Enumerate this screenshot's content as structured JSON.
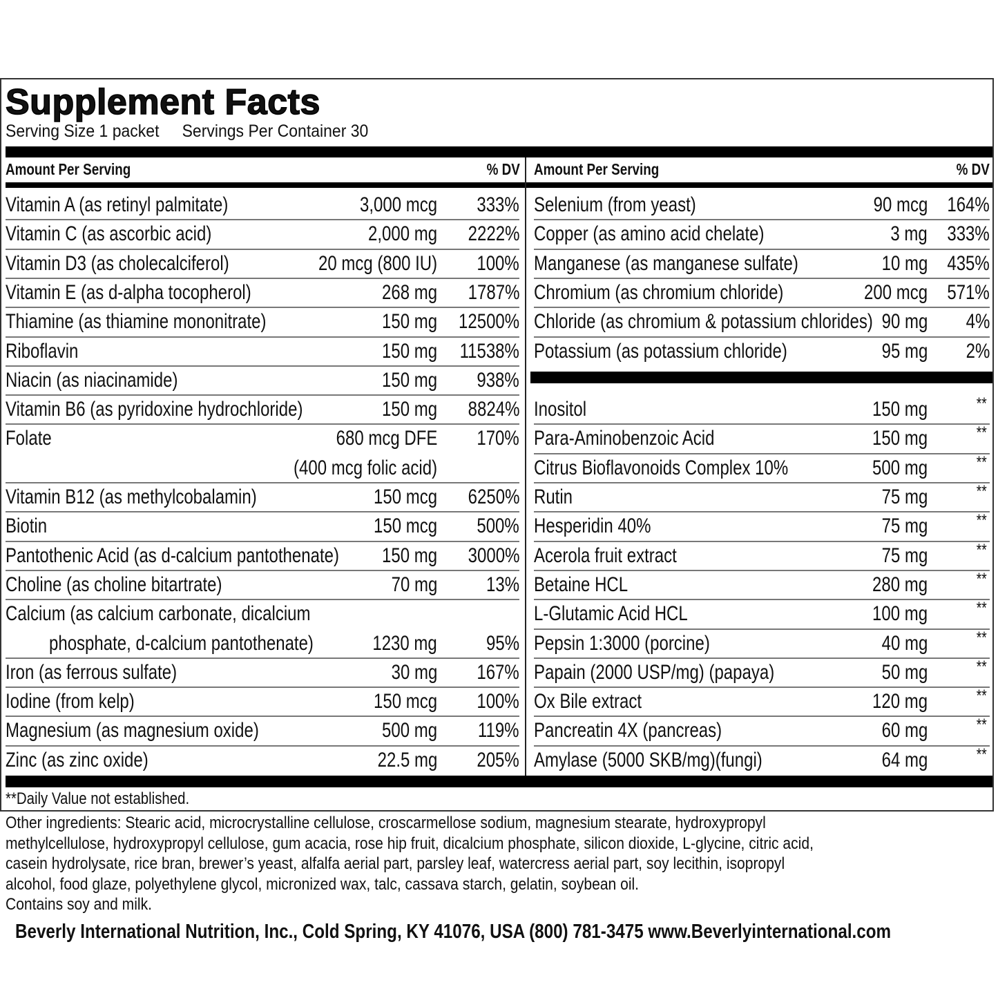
{
  "title": "Supplement Facts",
  "serving_size": "Serving Size 1 packet",
  "servings_per_container": "Servings Per Container 30",
  "header": {
    "amount_label": "Amount Per Serving",
    "dv_label": "% DV"
  },
  "left_items": [
    {
      "name": "Vitamin A (as retinyl palmitate)",
      "amount": "3,000 mcg",
      "dv": "333%"
    },
    {
      "name": "Vitamin C (as ascorbic acid)",
      "amount": "2,000 mg",
      "dv": "2222%"
    },
    {
      "name": "Vitamin D3 (as cholecalciferol)",
      "amount": "20 mcg (800 IU)",
      "dv": "100%"
    },
    {
      "name": "Vitamin E (as d-alpha tocopherol)",
      "amount": "268 mg",
      "dv": "1787%"
    },
    {
      "name": "Thiamine (as thiamine mononitrate)",
      "amount": "150 mg",
      "dv": "12500%"
    },
    {
      "name": "Riboflavin",
      "amount": "150 mg",
      "dv": "11538%"
    },
    {
      "name": "Niacin (as niacinamide)",
      "amount": "150 mg",
      "dv": "938%"
    },
    {
      "name": "Vitamin B6 (as pyridoxine hydrochloride)",
      "amount": "150 mg",
      "dv": "8824%"
    },
    {
      "name": "Folate",
      "amount": "680 mcg DFE",
      "dv": "170%",
      "amount_line2": "(400 mcg folic acid)"
    },
    {
      "name": "Vitamin B12 (as methylcobalamin)",
      "amount": "150 mcg",
      "dv": "6250%"
    },
    {
      "name": "Biotin",
      "amount": "150 mcg",
      "dv": "500%"
    },
    {
      "name": "Pantothenic Acid (as d-calcium pantothenate)",
      "amount": "150 mg",
      "dv": "3000%"
    },
    {
      "name": "Choline (as choline bitartrate)",
      "amount": "70 mg",
      "dv": "13%"
    },
    {
      "name": "Calcium (as calcium carbonate, dicalcium",
      "name_line2": "phosphate, d-calcium pantothenate)",
      "amount": "1230 mg",
      "dv": "95%"
    },
    {
      "name": "Iron (as ferrous sulfate)",
      "amount": "30 mg",
      "dv": "167%"
    },
    {
      "name": "Iodine (from kelp)",
      "amount": "150 mcg",
      "dv": "100%"
    },
    {
      "name": "Magnesium (as magnesium oxide)",
      "amount": "500 mg",
      "dv": "119%"
    },
    {
      "name": "Zinc (as zinc oxide)",
      "amount": "22.5 mg",
      "dv": "205%"
    }
  ],
  "right_items_top": [
    {
      "name": "Selenium (from yeast)",
      "amount": "90 mcg",
      "dv": "164%"
    },
    {
      "name": "Copper (as amino acid chelate)",
      "amount": "3 mg",
      "dv": "333%"
    },
    {
      "name": "Manganese (as manganese sulfate)",
      "amount": "10 mg",
      "dv": "435%"
    },
    {
      "name": "Chromium (as chromium chloride)",
      "amount": "200 mcg",
      "dv": "571%"
    },
    {
      "name": "Chloride (as chromium & potassium chlorides)",
      "amount": "90 mg",
      "dv": "4%"
    },
    {
      "name": "Potassium (as potassium chloride)",
      "amount": "95 mg",
      "dv": "2%"
    }
  ],
  "right_items_bottom": [
    {
      "name": "Inositol",
      "amount": "150 mg",
      "dv": "**"
    },
    {
      "name": "Para-Aminobenzoic Acid",
      "amount": "150 mg",
      "dv": "**"
    },
    {
      "name": "Citrus Bioflavonoids Complex 10%",
      "amount": "500 mg",
      "dv": "**"
    },
    {
      "name": "Rutin",
      "amount": "75 mg",
      "dv": "**"
    },
    {
      "name": "Hesperidin 40%",
      "amount": "75 mg",
      "dv": "**"
    },
    {
      "name": "Acerola fruit extract",
      "amount": "75 mg",
      "dv": "**"
    },
    {
      "name": "Betaine HCL",
      "amount": "280 mg",
      "dv": "**"
    },
    {
      "name": "L-Glutamic Acid HCL",
      "amount": "100 mg",
      "dv": "**"
    },
    {
      "name": "Pepsin 1:3000 (porcine)",
      "amount": "40 mg",
      "dv": "**"
    },
    {
      "name": "Papain (2000 USP/mg) (papaya)",
      "amount": "50 mg",
      "dv": "**"
    },
    {
      "name": "Ox Bile extract",
      "amount": "120 mg",
      "dv": "**"
    },
    {
      "name": "Pancreatin 4X (pancreas)",
      "amount": "60 mg",
      "dv": "**"
    },
    {
      "name": "Amylase (5000 SKB/mg)(fungi)",
      "amount": "64 mg",
      "dv": "**"
    }
  ],
  "dv_note": "**Daily Value not established.",
  "other_ingredients": [
    "Other ingredients: Stearic acid, microcrystalline cellulose, croscarmellose sodium, magnesium stearate, hydroxypropyl",
    "methylcellulose, hydroxypropyl cellulose, gum acacia, rose hip fruit, dicalcium phosphate, silicon dioxide, L-glycine, citric acid,",
    "casein hydrolysate, rice bran, brewer’s yeast, alfalfa aerial part, parsley leaf, watercress aerial part, soy  lecithin, isopropyl",
    "alcohol, food glaze, polyethylene glycol, micronized wax, talc, cassava starch, gelatin, soybean oil.",
    "Contains soy and milk."
  ],
  "manufacturer": "Beverly International Nutrition, Inc., Cold Spring, KY 41076, USA  (800) 781-3475 www.Beverlyinternational.com"
}
